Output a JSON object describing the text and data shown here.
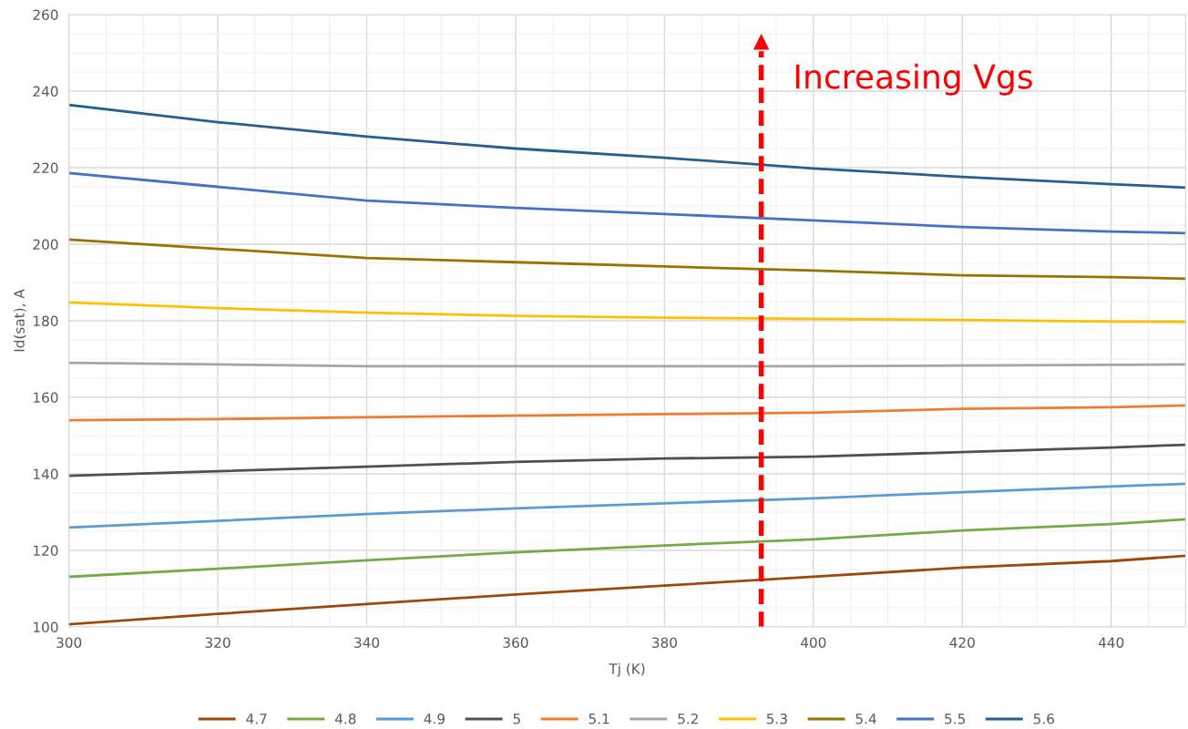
{
  "chart_data": {
    "type": "line",
    "xlabel": "Tj (K)",
    "ylabel": "Id(sat), A",
    "x": [
      300,
      320,
      340,
      360,
      380,
      400,
      420,
      440,
      450
    ],
    "series": [
      {
        "name": "4.7",
        "color": "#9e480e",
        "values": [
          100.7,
          103.4,
          106.0,
          108.5,
          110.8,
          113.1,
          115.5,
          117.2,
          118.6
        ]
      },
      {
        "name": "4.8",
        "color": "#70ad47",
        "values": [
          113.1,
          115.2,
          117.4,
          119.5,
          121.3,
          122.9,
          125.2,
          126.9,
          128.1
        ]
      },
      {
        "name": "4.9",
        "color": "#5b9bd5",
        "values": [
          126.0,
          127.7,
          129.5,
          131.0,
          132.3,
          133.6,
          135.2,
          136.7,
          137.4
        ]
      },
      {
        "name": "5",
        "color": "#505050",
        "values": [
          139.5,
          140.7,
          141.9,
          143.1,
          144.0,
          144.5,
          145.7,
          146.9,
          147.6
        ]
      },
      {
        "name": "5.1",
        "color": "#ed7d31",
        "values": [
          154.0,
          154.3,
          154.8,
          155.2,
          155.6,
          156.0,
          157.0,
          157.4,
          157.9
        ]
      },
      {
        "name": "5.2",
        "color": "#a5a5a5",
        "values": [
          169.0,
          168.6,
          168.1,
          168.1,
          168.1,
          168.1,
          168.3,
          168.5,
          168.6
        ]
      },
      {
        "name": "5.3",
        "color": "#ffc000",
        "values": [
          184.8,
          183.3,
          182.1,
          181.3,
          180.8,
          180.5,
          180.2,
          179.8,
          179.7
        ]
      },
      {
        "name": "5.4",
        "color": "#997300",
        "values": [
          201.2,
          198.8,
          196.4,
          195.3,
          194.2,
          193.1,
          191.9,
          191.4,
          191.0
        ]
      },
      {
        "name": "5.5",
        "color": "#4472c4",
        "values": [
          218.6,
          215.0,
          211.4,
          209.5,
          207.9,
          206.2,
          204.5,
          203.3,
          202.9
        ]
      },
      {
        "name": "5.6",
        "color": "#255e91",
        "values": [
          236.4,
          231.9,
          228.1,
          225.0,
          222.6,
          219.8,
          217.6,
          215.7,
          214.8
        ]
      }
    ],
    "xlim": [
      300,
      450
    ],
    "xticks": [
      300,
      320,
      340,
      360,
      380,
      400,
      420,
      440
    ],
    "ylim": [
      100,
      260
    ],
    "yticks": [
      100,
      120,
      140,
      160,
      180,
      200,
      220,
      240,
      260
    ],
    "grid": true,
    "legend": "bottom",
    "marker": "none",
    "line_style": "solid",
    "ref_lines": [
      {
        "axis": "x",
        "value": 393,
        "label": "Increasing Vgs",
        "color": "#ff0000",
        "line_style": "dashed"
      }
    ]
  }
}
